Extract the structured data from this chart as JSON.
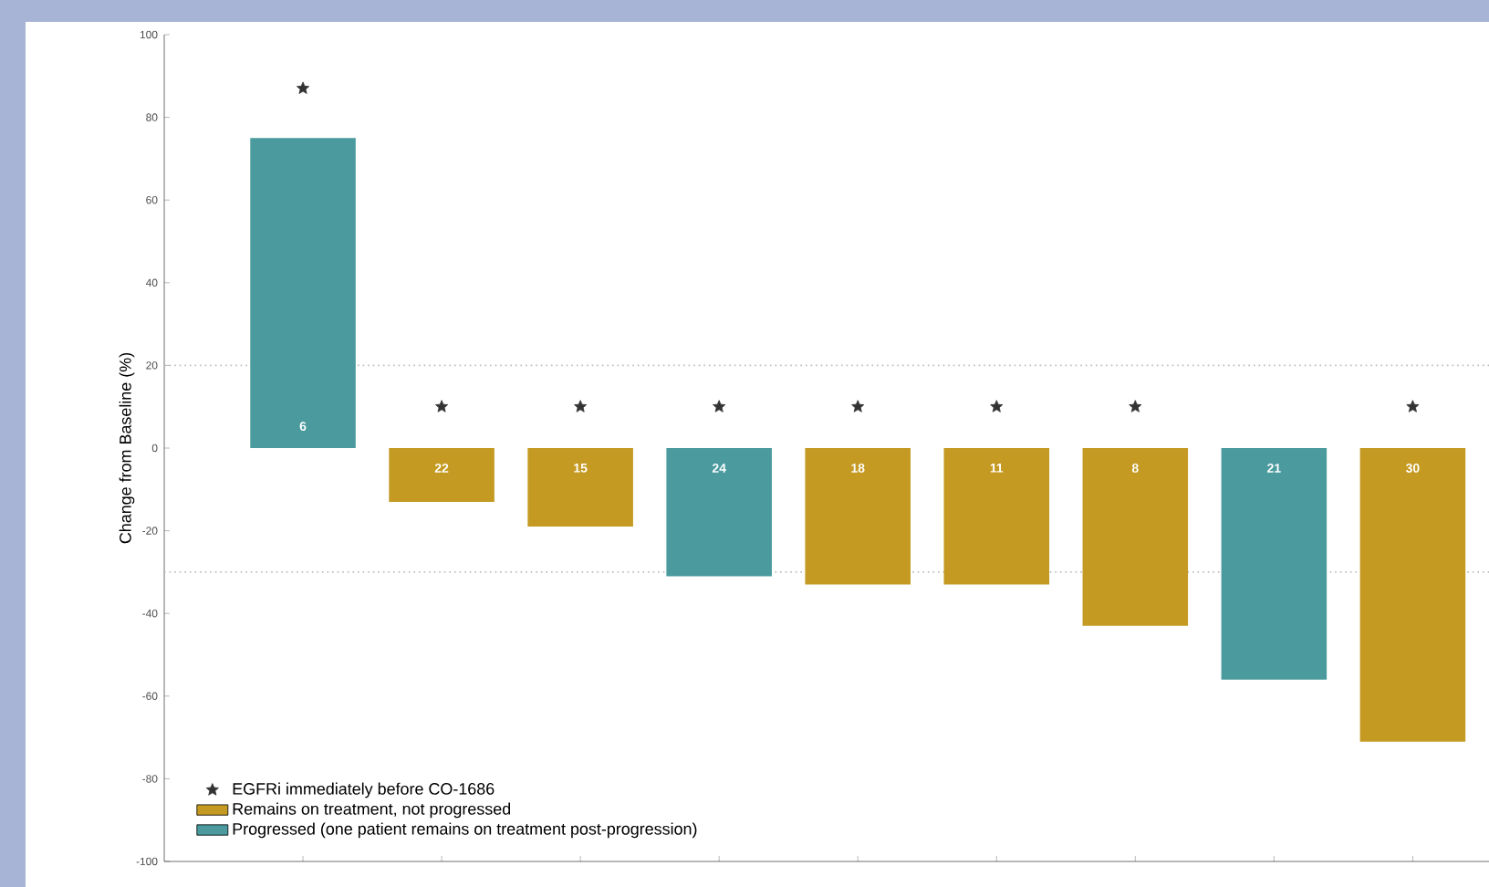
{
  "chart_data": {
    "type": "bar",
    "ylabel": "Change from Baseline (%)",
    "categories": [
      null,
      null,
      null,
      null,
      null,
      null,
      null,
      null,
      null
    ],
    "series": [
      {
        "name": "EGFRi immediately before CO-1686",
        "type": "scatter",
        "marker": "star",
        "color": "#333333",
        "values": [
          87,
          10,
          10,
          10,
          10,
          10,
          10,
          null,
          10
        ]
      },
      {
        "name": "Remains on treatment, not progressed",
        "color": "#c49a22",
        "values": [
          null,
          -13,
          -19,
          null,
          -33,
          -33,
          -43,
          null,
          -71
        ]
      },
      {
        "name": "Progressed (one patient remains on treatment post-progression)",
        "color": "#4a9a9e",
        "values": [
          75,
          null,
          null,
          -31,
          null,
          null,
          null,
          -56,
          null
        ]
      }
    ],
    "annotations": [
      "6",
      "22",
      "15",
      "24",
      "18",
      "11",
      "8",
      "21",
      "30"
    ],
    "ylim": [
      -100,
      100
    ],
    "yticks": [
      -100,
      -80,
      -60,
      -40,
      -20,
      0,
      20,
      40,
      60,
      80,
      100
    ],
    "ref_lines": [
      {
        "axis": "y",
        "value": 20,
        "color": "#bbbbbb",
        "line_style": "dotted"
      },
      {
        "axis": "y",
        "value": -30,
        "color": "#bbbbbb",
        "line_style": "dotted"
      }
    ],
    "legend": "bottom left",
    "tick_labels": "y",
    "grid": false
  }
}
